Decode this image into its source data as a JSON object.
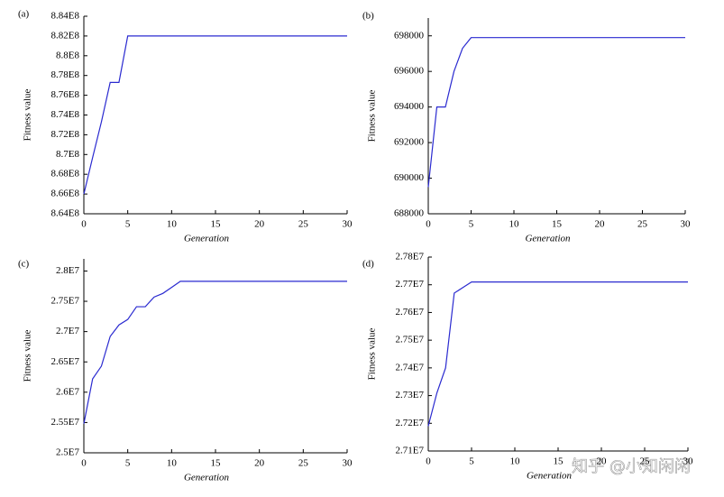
{
  "chart_data": [
    {
      "type": "line",
      "panel_label": "(a)",
      "xlabel": "Generation",
      "ylabel": "Fitness value",
      "color": "#2a2ad0",
      "x": [
        0,
        1,
        2,
        3,
        4,
        5,
        30
      ],
      "values": [
        866000000,
        869700000,
        873300000,
        877300000,
        877300000,
        882000000,
        882000000
      ],
      "xlim": [
        0,
        30
      ],
      "xticks": [
        0,
        5,
        10,
        15,
        20,
        25,
        30
      ],
      "ylim": [
        864000000,
        884000000
      ],
      "yticks": [
        {
          "value": 864000000,
          "label": "8.64E8"
        },
        {
          "value": 866000000,
          "label": "8.66E8"
        },
        {
          "value": 868000000,
          "label": "8.68E8"
        },
        {
          "value": 870000000,
          "label": "8.7E8"
        },
        {
          "value": 872000000,
          "label": "8.72E8"
        },
        {
          "value": 874000000,
          "label": "8.74E8"
        },
        {
          "value": 876000000,
          "label": "8.76E8"
        },
        {
          "value": 878000000,
          "label": "8.78E8"
        },
        {
          "value": 880000000,
          "label": "8.8E8"
        },
        {
          "value": 882000000,
          "label": "8.82E8"
        },
        {
          "value": 884000000,
          "label": "8.84E8"
        }
      ]
    },
    {
      "type": "line",
      "panel_label": "(b)",
      "xlabel": "Generation",
      "ylabel": "Fitness value",
      "color": "#2a2ad0",
      "x": [
        0,
        1,
        2,
        3,
        4,
        5,
        30
      ],
      "values": [
        689500,
        694000,
        694000,
        696000,
        697300,
        697900,
        697900
      ],
      "xlim": [
        0,
        30
      ],
      "xticks": [
        0,
        5,
        10,
        15,
        20,
        25,
        30
      ],
      "ylim": [
        688000,
        699000
      ],
      "yticks": [
        688000,
        690000,
        692000,
        694000,
        696000,
        698000
      ]
    },
    {
      "type": "line",
      "panel_label": "(c)",
      "xlabel": "Generation",
      "ylabel": "Fitness value",
      "color": "#2a2ad0",
      "x": [
        0,
        1,
        2,
        3,
        4,
        5,
        6,
        7,
        8,
        9,
        10,
        11,
        30
      ],
      "values": [
        25480000,
        26220000,
        26430000,
        26920000,
        27110000,
        27200000,
        27410000,
        27410000,
        27570000,
        27630000,
        27730000,
        27830000,
        27830000
      ],
      "xlim": [
        0,
        30
      ],
      "xticks": [
        0,
        5,
        10,
        15,
        20,
        25,
        30
      ],
      "ylim": [
        25000000,
        28200000
      ],
      "yticks": [
        {
          "value": 25000000,
          "label": "2.5E7"
        },
        {
          "value": 25500000,
          "label": "2.55E7"
        },
        {
          "value": 26000000,
          "label": "2.6E7"
        },
        {
          "value": 26500000,
          "label": "2.65E7"
        },
        {
          "value": 27000000,
          "label": "2.7E7"
        },
        {
          "value": 27500000,
          "label": "2.75E7"
        },
        {
          "value": 28000000,
          "label": "2.8E7"
        }
      ]
    },
    {
      "type": "line",
      "panel_label": "(d)",
      "xlabel": "Generation",
      "ylabel": "Fitness value",
      "color": "#2a2ad0",
      "x": [
        0,
        1,
        2,
        3,
        4,
        5,
        30
      ],
      "values": [
        27190000,
        27310000,
        27400000,
        27670000,
        27690000,
        27710000,
        27710000
      ],
      "xlim": [
        0,
        30
      ],
      "xticks": [
        0,
        5,
        10,
        15,
        20,
        25,
        30
      ],
      "ylim": [
        27100000,
        27800000
      ],
      "yticks": [
        {
          "value": 27100000,
          "label": "2.71E7"
        },
        {
          "value": 27200000,
          "label": "2.72E7"
        },
        {
          "value": 27300000,
          "label": "2.73E7"
        },
        {
          "value": 27400000,
          "label": "2.74E7"
        },
        {
          "value": 27500000,
          "label": "2.75E7"
        },
        {
          "value": 27600000,
          "label": "2.76E7"
        },
        {
          "value": 27700000,
          "label": "2.77E7"
        },
        {
          "value": 27800000,
          "label": "2.78E7"
        }
      ]
    }
  ],
  "watermark": "知乎 @小知闲闲"
}
